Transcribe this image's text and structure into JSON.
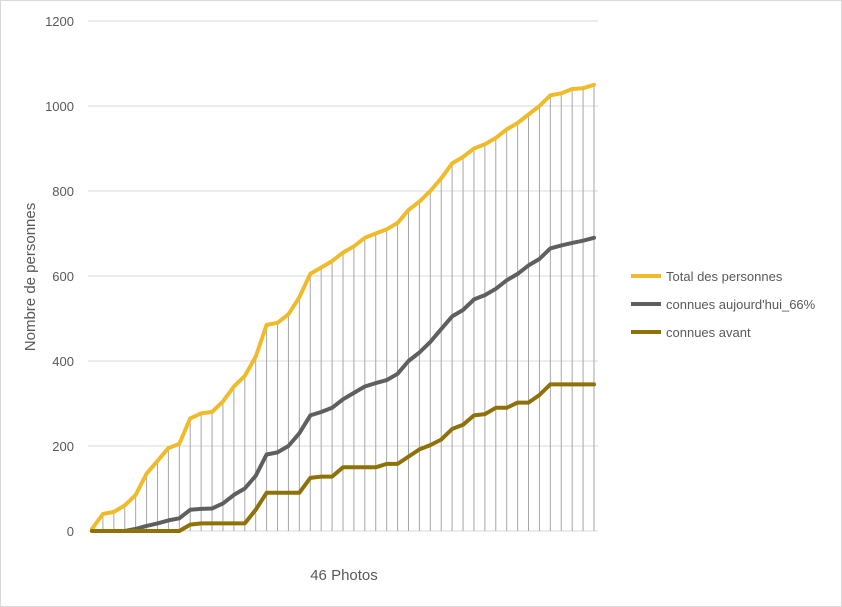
{
  "chart_data": {
    "type": "line",
    "title": "",
    "xlabel": "46 Photos",
    "ylabel": "Nombre de personnes",
    "ylim": [
      0,
      1200
    ],
    "yticks": [
      0,
      200,
      400,
      600,
      800,
      1000,
      1200
    ],
    "grid": "horizontal and vertical",
    "legend_position": "right",
    "x": [
      1,
      2,
      3,
      4,
      5,
      6,
      7,
      8,
      9,
      10,
      11,
      12,
      13,
      14,
      15,
      16,
      17,
      18,
      19,
      20,
      21,
      22,
      23,
      24,
      25,
      26,
      27,
      28,
      29,
      30,
      31,
      32,
      33,
      34,
      35,
      36,
      37,
      38,
      39,
      40,
      41,
      42,
      43,
      44,
      45,
      46,
      47
    ],
    "series": [
      {
        "name": "Total des personnes",
        "color": "#f0bb2a",
        "values": [
          5,
          40,
          45,
          60,
          85,
          135,
          165,
          195,
          205,
          265,
          277,
          280,
          305,
          340,
          365,
          410,
          485,
          490,
          510,
          550,
          605,
          620,
          635,
          655,
          670,
          690,
          700,
          710,
          725,
          755,
          775,
          800,
          830,
          865,
          880,
          900,
          910,
          925,
          945,
          960,
          980,
          1000,
          1025,
          1030,
          1040,
          1042,
          1050
        ]
      },
      {
        "name": "connues aujourd'hui_66%",
        "color": "#5f5f5f",
        "values": [
          0,
          0,
          0,
          0,
          5,
          12,
          18,
          25,
          30,
          50,
          52,
          53,
          65,
          85,
          100,
          130,
          180,
          185,
          200,
          230,
          272,
          280,
          290,
          310,
          325,
          340,
          348,
          355,
          370,
          400,
          420,
          445,
          475,
          505,
          520,
          545,
          555,
          570,
          590,
          605,
          625,
          640,
          665,
          672,
          678,
          683,
          690
        ]
      },
      {
        "name": "connues avant",
        "color": "#8e7107",
        "values": [
          0,
          0,
          0,
          0,
          0,
          0,
          0,
          0,
          0,
          15,
          18,
          18,
          18,
          18,
          18,
          50,
          90,
          90,
          90,
          90,
          125,
          128,
          128,
          150,
          150,
          150,
          150,
          158,
          158,
          175,
          192,
          202,
          215,
          240,
          250,
          272,
          275,
          290,
          290,
          302,
          302,
          320,
          345,
          345,
          345,
          345,
          345
        ]
      }
    ]
  }
}
